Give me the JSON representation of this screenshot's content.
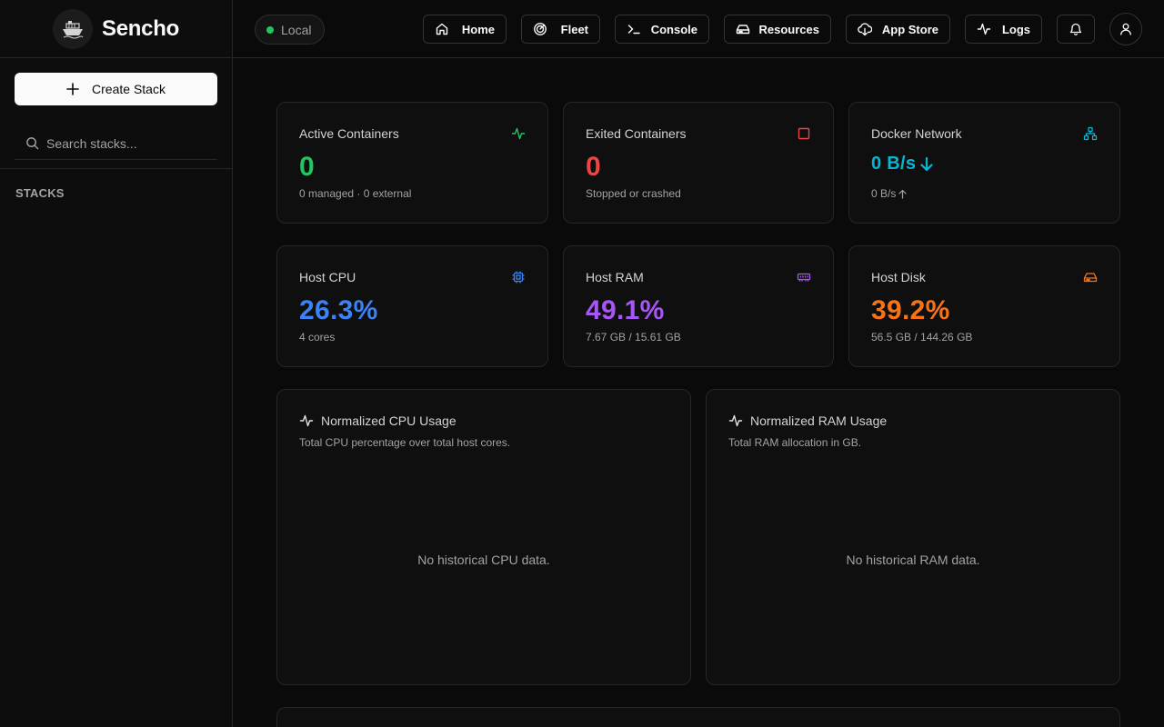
{
  "brand": {
    "name": "Sencho"
  },
  "sidebar": {
    "create_label": "Create Stack",
    "search_placeholder": "Search stacks...",
    "section_label": "STACKS"
  },
  "topbar": {
    "environment": "Local",
    "nav": [
      {
        "label": "Home",
        "icon": "home-icon"
      },
      {
        "label": "Fleet",
        "icon": "radar-icon"
      },
      {
        "label": "Console",
        "icon": "terminal-icon"
      },
      {
        "label": "Resources",
        "icon": "drive-icon"
      },
      {
        "label": "App Store",
        "icon": "cloud-download-icon"
      },
      {
        "label": "Logs",
        "icon": "activity-icon"
      }
    ]
  },
  "stats": [
    {
      "title": "Active Containers",
      "value": "0",
      "sub": "0 managed · 0 external",
      "color": "#22c55e",
      "icon": "activity-icon"
    },
    {
      "title": "Exited Containers",
      "value": "0",
      "sub": "Stopped or crashed",
      "color": "#ef4444",
      "icon": "square-icon"
    },
    {
      "title": "Docker Network",
      "value": "0 B/s",
      "sub": "0 B/s",
      "color": "#06b6d4",
      "icon": "network-icon"
    },
    {
      "title": "Host CPU",
      "value": "26.3%",
      "sub": "4 cores",
      "color": "#3b82f6",
      "icon": "cpu-icon"
    },
    {
      "title": "Host RAM",
      "value": "49.1%",
      "sub": "7.67 GB / 15.61 GB",
      "color": "#a855f7",
      "icon": "memory-icon"
    },
    {
      "title": "Host Disk",
      "value": "39.2%",
      "sub": "56.5 GB / 144.26 GB",
      "color": "#f97316",
      "icon": "drive-icon"
    }
  ],
  "charts": [
    {
      "title": "Normalized CPU Usage",
      "description": "Total CPU percentage over total host cores.",
      "empty": "No historical CPU data."
    },
    {
      "title": "Normalized RAM Usage",
      "description": "Total RAM allocation in GB.",
      "empty": "No historical RAM data."
    }
  ]
}
